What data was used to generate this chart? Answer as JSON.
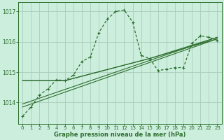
{
  "background_color": "#cceedd",
  "grid_color": "#aaccbb",
  "line_color": "#2d6e2d",
  "title": "Graphe pression niveau de la mer (hPa)",
  "xlim": [
    -0.5,
    23.5
  ],
  "ylim": [
    1013.3,
    1017.3
  ],
  "xticks": [
    0,
    1,
    2,
    3,
    4,
    5,
    6,
    7,
    8,
    9,
    10,
    11,
    12,
    13,
    14,
    15,
    16,
    17,
    18,
    19,
    20,
    21,
    22,
    23
  ],
  "yticks": [
    1014,
    1015,
    1016,
    1017
  ],
  "series_main": {
    "x": [
      0,
      1,
      2,
      3,
      4,
      5,
      6,
      7,
      8,
      9,
      10,
      11,
      12,
      13,
      14,
      15,
      16,
      17,
      18,
      19,
      20,
      21,
      22,
      23
    ],
    "y": [
      1013.55,
      1013.85,
      1014.25,
      1014.45,
      1014.75,
      1014.72,
      1014.9,
      1015.35,
      1015.5,
      1016.3,
      1016.75,
      1017.0,
      1017.05,
      1016.65,
      1015.55,
      1015.45,
      1015.05,
      1015.1,
      1015.15,
      1015.15,
      1015.95,
      1016.2,
      1016.15,
      1016.05
    ]
  },
  "trend_lines": [
    {
      "x": [
        0,
        23
      ],
      "y": [
        1013.85,
        1016.1
      ]
    },
    {
      "x": [
        0,
        23
      ],
      "y": [
        1013.95,
        1016.15
      ]
    },
    {
      "x": [
        0,
        5,
        15,
        23
      ],
      "y": [
        1014.72,
        1014.72,
        1015.45,
        1016.1
      ]
    },
    {
      "x": [
        0,
        5,
        15,
        23
      ],
      "y": [
        1014.72,
        1014.72,
        1015.45,
        1016.15
      ]
    }
  ]
}
